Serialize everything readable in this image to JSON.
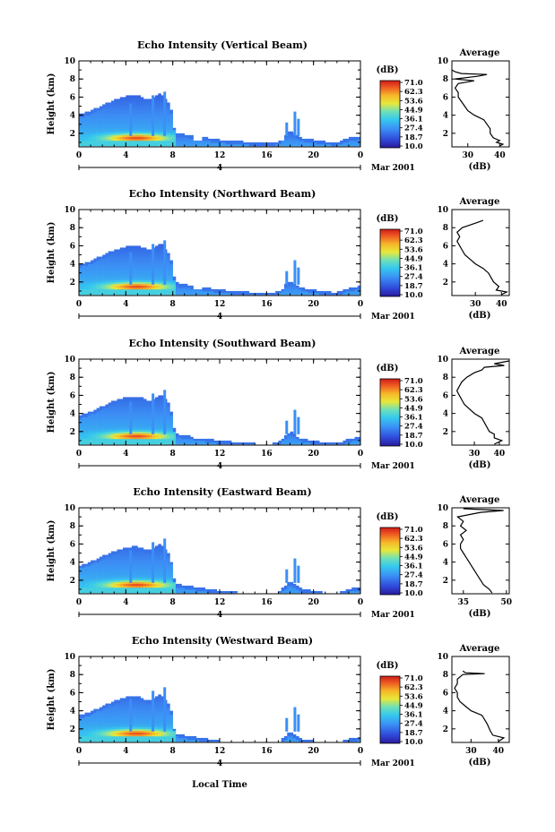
{
  "chart_data": {
    "type": "heatmap",
    "date_label": "Mar 2001",
    "day_label": "4",
    "xlabel": "Local Time",
    "ylabel": "Height (km)",
    "x_ticks": [
      "0",
      "4",
      "8",
      "12",
      "16",
      "20",
      "0"
    ],
    "y_ticks": [
      "2",
      "4",
      "6",
      "8",
      "10"
    ],
    "xlim_hours": [
      0,
      24
    ],
    "ylim_km": [
      0.5,
      10
    ],
    "colorbar": {
      "unit": "(dB)",
      "ticks": [
        "71.0",
        "62.3",
        "53.6",
        "44.9",
        "36.1",
        "27.4",
        "18.7",
        "10.0"
      ],
      "range": [
        10.0,
        71.0
      ]
    },
    "profile_title": "Average",
    "profile_xlabel": "(dB)",
    "panels": [
      {
        "title": "Echo Intensity (Vertical Beam)",
        "profile_xticks": [
          "30",
          "40"
        ],
        "profile_xlim": [
          25,
          43
        ],
        "profile": [
          [
            40,
            0.6
          ],
          [
            41,
            0.8
          ],
          [
            39,
            1.0
          ],
          [
            40,
            1.2
          ],
          [
            38,
            1.5
          ],
          [
            37,
            2.0
          ],
          [
            37,
            2.5
          ],
          [
            36,
            3.0
          ],
          [
            35,
            3.5
          ],
          [
            32,
            4.0
          ],
          [
            30,
            4.5
          ],
          [
            29,
            5.0
          ],
          [
            28,
            5.5
          ],
          [
            27,
            6.0
          ],
          [
            27,
            6.5
          ],
          [
            26,
            7.0
          ],
          [
            27,
            7.5
          ],
          [
            32,
            7.8
          ],
          [
            26,
            8.0
          ],
          [
            33,
            8.3
          ],
          [
            36,
            8.5
          ],
          [
            28,
            8.6
          ],
          [
            26,
            8.8
          ],
          [
            25,
            9.0
          ]
        ]
      },
      {
        "title": "Echo Intensity (Northward Beam)",
        "profile_xticks": [
          "30",
          "40"
        ],
        "profile_xlim": [
          21,
          43
        ],
        "profile": [
          [
            40,
            0.6
          ],
          [
            42,
            0.9
          ],
          [
            38,
            1.1
          ],
          [
            39,
            1.5
          ],
          [
            37,
            2.0
          ],
          [
            36,
            2.5
          ],
          [
            35,
            3.0
          ],
          [
            33,
            3.5
          ],
          [
            30,
            4.0
          ],
          [
            28,
            4.5
          ],
          [
            26,
            5.0
          ],
          [
            25,
            5.5
          ],
          [
            24,
            6.0
          ],
          [
            23,
            6.5
          ],
          [
            24,
            7.0
          ],
          [
            23,
            7.5
          ],
          [
            25,
            8.0
          ],
          [
            30,
            8.5
          ],
          [
            33,
            8.8
          ]
        ]
      },
      {
        "title": "Echo Intensity (Southward Beam)",
        "profile_xticks": [
          "30",
          "40"
        ],
        "profile_xlim": [
          21,
          44
        ],
        "profile": [
          [
            38,
            0.6
          ],
          [
            41,
            1.0
          ],
          [
            38,
            1.3
          ],
          [
            38,
            1.7
          ],
          [
            36,
            2.0
          ],
          [
            35,
            2.5
          ],
          [
            34,
            3.0
          ],
          [
            33,
            3.5
          ],
          [
            30,
            4.0
          ],
          [
            28,
            4.5
          ],
          [
            26,
            5.0
          ],
          [
            25,
            5.5
          ],
          [
            24,
            6.0
          ],
          [
            23,
            6.5
          ],
          [
            24,
            7.0
          ],
          [
            25,
            7.5
          ],
          [
            27,
            8.0
          ],
          [
            30,
            8.5
          ],
          [
            33,
            8.8
          ],
          [
            34,
            9.1
          ],
          [
            42,
            9.3
          ],
          [
            38,
            9.5
          ],
          [
            44,
            9.8
          ]
        ]
      },
      {
        "title": "Echo Intensity (Eastward Beam)",
        "profile_xticks": [
          "35",
          "50"
        ],
        "profile_xlim": [
          31,
          51
        ],
        "profile": [
          [
            45,
            0.6
          ],
          [
            44,
            1.0
          ],
          [
            42,
            1.5
          ],
          [
            41,
            2.0
          ],
          [
            40,
            2.5
          ],
          [
            39,
            3.0
          ],
          [
            38,
            3.5
          ],
          [
            37,
            4.0
          ],
          [
            36,
            4.5
          ],
          [
            35,
            5.0
          ],
          [
            34,
            5.5
          ],
          [
            34,
            6.0
          ],
          [
            35,
            6.5
          ],
          [
            34,
            7.0
          ],
          [
            36,
            7.5
          ],
          [
            34,
            8.0
          ],
          [
            35,
            8.5
          ],
          [
            33,
            9.0
          ],
          [
            41,
            9.5
          ],
          [
            49,
            9.7
          ],
          [
            35,
            9.9
          ]
        ]
      },
      {
        "title": "Echo Intensity (Westward Beam)",
        "profile_xticks": [
          "30",
          "40"
        ],
        "profile_xlim": [
          23,
          44
        ],
        "profile": [
          [
            40,
            0.6
          ],
          [
            42,
            1.0
          ],
          [
            38,
            1.3
          ],
          [
            37,
            1.8
          ],
          [
            36,
            2.5
          ],
          [
            35,
            3.0
          ],
          [
            34,
            3.5
          ],
          [
            30,
            4.0
          ],
          [
            28,
            4.5
          ],
          [
            26,
            5.0
          ],
          [
            25,
            5.5
          ],
          [
            25,
            6.0
          ],
          [
            24,
            6.5
          ],
          [
            25,
            7.0
          ],
          [
            25,
            7.5
          ],
          [
            27,
            8.0
          ],
          [
            35,
            8.1
          ],
          [
            28,
            8.2
          ],
          [
            27,
            8.4
          ]
        ]
      }
    ]
  }
}
